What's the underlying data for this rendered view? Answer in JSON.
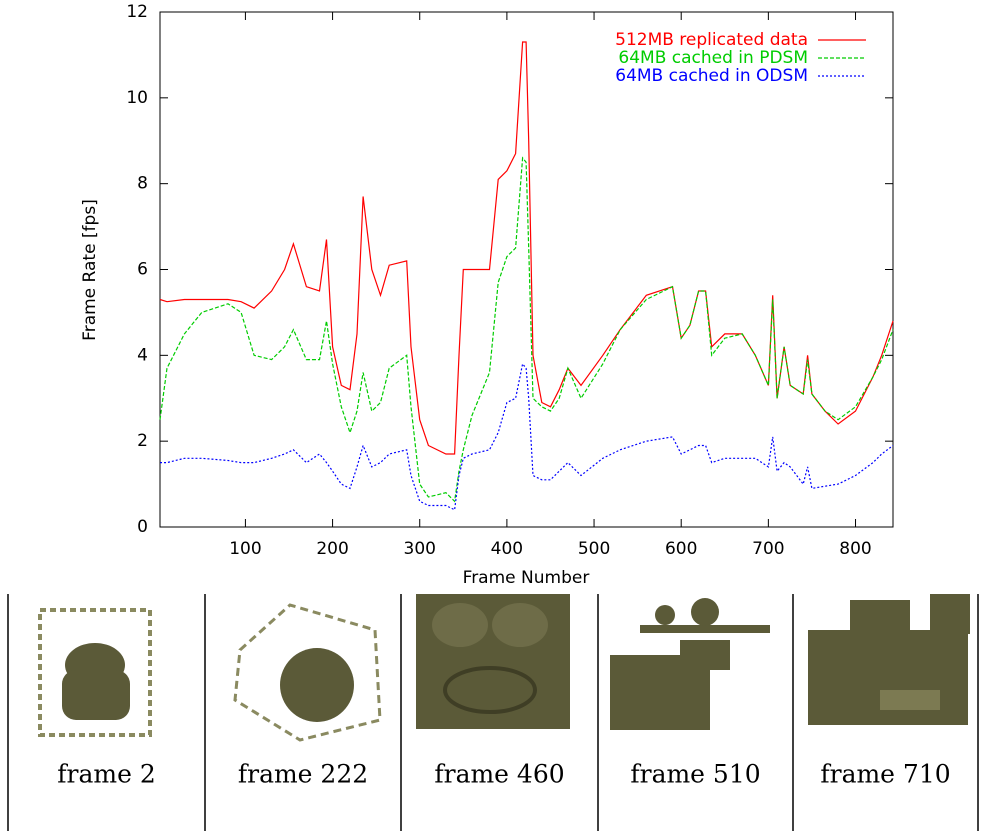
{
  "chart_data": {
    "type": "line",
    "xlabel": "Frame Number",
    "ylabel": "Frame Rate [fps]",
    "x": [
      2,
      10,
      30,
      50,
      80,
      95,
      110,
      130,
      145,
      155,
      170,
      185,
      193,
      200,
      210,
      220,
      228,
      235,
      245,
      255,
      265,
      285,
      290,
      300,
      310,
      330,
      340,
      345,
      350,
      360,
      380,
      390,
      400,
      410,
      418,
      422,
      425,
      430,
      440,
      450,
      460,
      470,
      485,
      510,
      530,
      560,
      590,
      600,
      610,
      620,
      628,
      635,
      650,
      670,
      685,
      700,
      705,
      710,
      718,
      725,
      740,
      745,
      750,
      765,
      780,
      800,
      820,
      830,
      843
    ],
    "series": [
      {
        "name": "512MB replicated data",
        "color": "#ff0000",
        "dash": "none",
        "values": [
          5.3,
          5.25,
          5.3,
          5.3,
          5.3,
          5.25,
          5.1,
          5.5,
          6.0,
          6.6,
          5.6,
          5.5,
          6.7,
          4.2,
          3.3,
          3.2,
          4.5,
          7.7,
          6.0,
          5.4,
          6.1,
          6.2,
          4.2,
          2.5,
          1.9,
          1.7,
          1.7,
          4.0,
          6.0,
          6.0,
          6.0,
          8.1,
          8.3,
          8.7,
          11.3,
          11.3,
          9.0,
          4.0,
          2.9,
          2.8,
          3.2,
          3.7,
          3.3,
          4.0,
          4.6,
          5.4,
          5.6,
          4.4,
          4.7,
          5.5,
          5.5,
          4.2,
          4.5,
          4.5,
          4.0,
          3.3,
          5.4,
          3.0,
          4.2,
          3.3,
          3.1,
          4.0,
          3.1,
          2.7,
          2.4,
          2.7,
          3.5,
          4.0,
          4.8
        ]
      },
      {
        "name": "64MB cached in PDSM",
        "color": "#00cc00",
        "dash": "4,2",
        "values": [
          2.5,
          3.7,
          4.5,
          5.0,
          5.2,
          5.0,
          4.0,
          3.9,
          4.2,
          4.6,
          3.9,
          3.9,
          4.8,
          3.8,
          2.8,
          2.2,
          2.7,
          3.6,
          2.7,
          2.9,
          3.7,
          4.0,
          2.8,
          1.0,
          0.7,
          0.8,
          0.6,
          1.3,
          1.8,
          2.6,
          3.6,
          5.7,
          6.3,
          6.5,
          8.6,
          8.5,
          6.5,
          3.0,
          2.8,
          2.7,
          3.0,
          3.7,
          3.0,
          3.8,
          4.6,
          5.3,
          5.6,
          4.4,
          4.7,
          5.5,
          5.5,
          4.0,
          4.4,
          4.5,
          4.0,
          3.3,
          5.3,
          3.0,
          4.2,
          3.3,
          3.1,
          3.9,
          3.1,
          2.7,
          2.5,
          2.8,
          3.5,
          3.9,
          4.6
        ]
      },
      {
        "name": "64MB cached in ODSM",
        "color": "#0000ff",
        "dash": "2,2",
        "values": [
          1.5,
          1.5,
          1.6,
          1.6,
          1.55,
          1.5,
          1.5,
          1.6,
          1.7,
          1.8,
          1.5,
          1.7,
          1.5,
          1.3,
          1.0,
          0.9,
          1.4,
          1.9,
          1.4,
          1.5,
          1.7,
          1.8,
          1.2,
          0.6,
          0.5,
          0.5,
          0.4,
          1.2,
          1.6,
          1.7,
          1.8,
          2.2,
          2.9,
          3.0,
          3.8,
          3.7,
          3.0,
          1.2,
          1.1,
          1.1,
          1.3,
          1.5,
          1.2,
          1.6,
          1.8,
          2.0,
          2.1,
          1.7,
          1.8,
          1.9,
          1.9,
          1.5,
          1.6,
          1.6,
          1.6,
          1.4,
          2.1,
          1.3,
          1.5,
          1.4,
          1.0,
          1.4,
          0.9,
          0.95,
          1.0,
          1.2,
          1.5,
          1.7,
          1.9
        ]
      }
    ],
    "xlim": [
      2,
      843
    ],
    "xticks": [
      100,
      200,
      300,
      400,
      500,
      600,
      700,
      800
    ],
    "ylim": [
      0,
      12
    ],
    "yticks": [
      0,
      2,
      4,
      6,
      8,
      10,
      12
    ],
    "legend": "top-right"
  },
  "panels": {
    "captions": [
      "frame 2",
      "frame 222",
      "frame 460",
      "frame 510",
      "frame 710"
    ]
  }
}
